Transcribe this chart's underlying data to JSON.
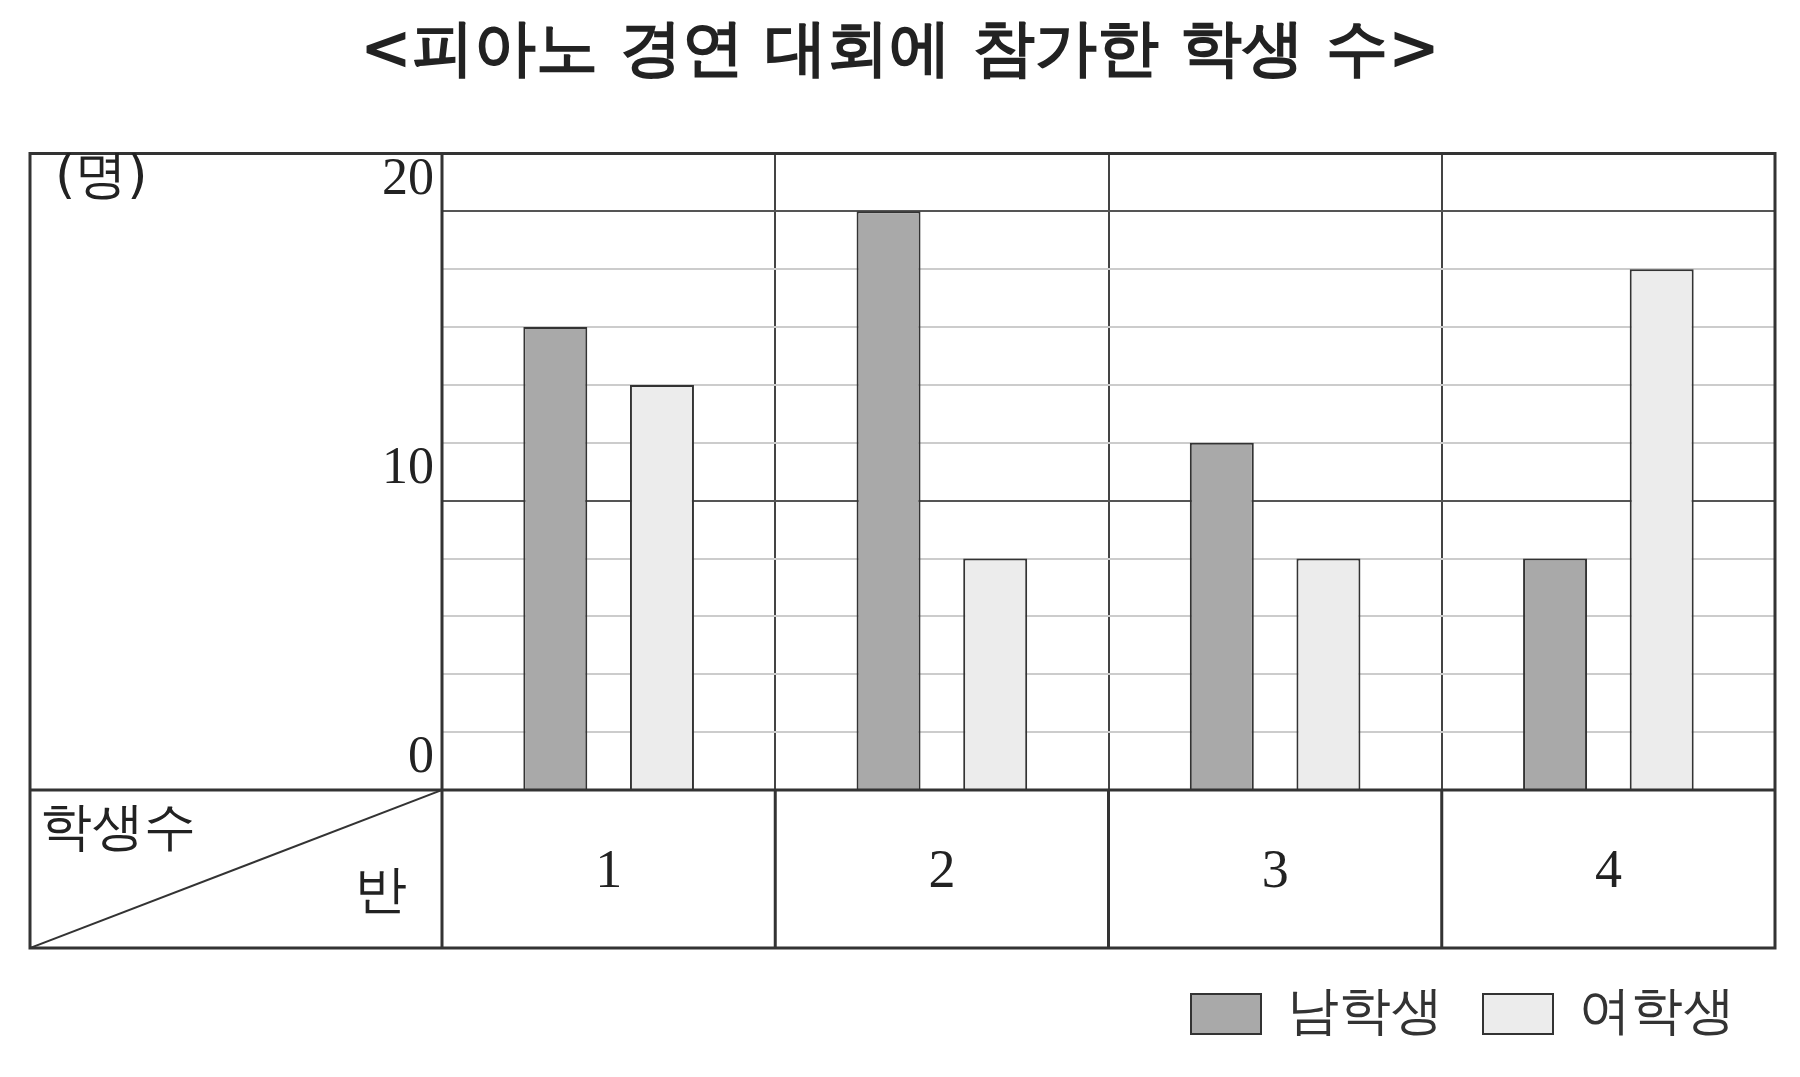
{
  "chart_data": {
    "type": "bar",
    "title": "<피아노 경연 대회에 참가한 학생 수>",
    "xlabel": "반",
    "ylabel": "(명)",
    "annotations": [
      "학생수"
    ],
    "categories": [
      "1",
      "2",
      "3",
      "4"
    ],
    "series": [
      {
        "name": "남학생",
        "color": "#a9a9a9",
        "values": [
          16,
          20,
          12,
          8
        ]
      },
      {
        "name": "여학생",
        "color": "#ececec",
        "values": [
          14,
          8,
          8,
          18
        ]
      }
    ],
    "ylim": [
      0,
      22
    ],
    "yticks": [
      0,
      {
        "value": 2,
        "label": null
      },
      {
        "value": 4,
        "label": null
      },
      {
        "value": 6,
        "label": null
      },
      {
        "value": 8,
        "label": null
      },
      10,
      {
        "value": 12,
        "label": null
      },
      {
        "value": 14,
        "label": null
      },
      {
        "value": 16,
        "label": null
      },
      {
        "value": 18,
        "label": null
      },
      20
    ],
    "grid": true,
    "legend": "bottom right"
  }
}
